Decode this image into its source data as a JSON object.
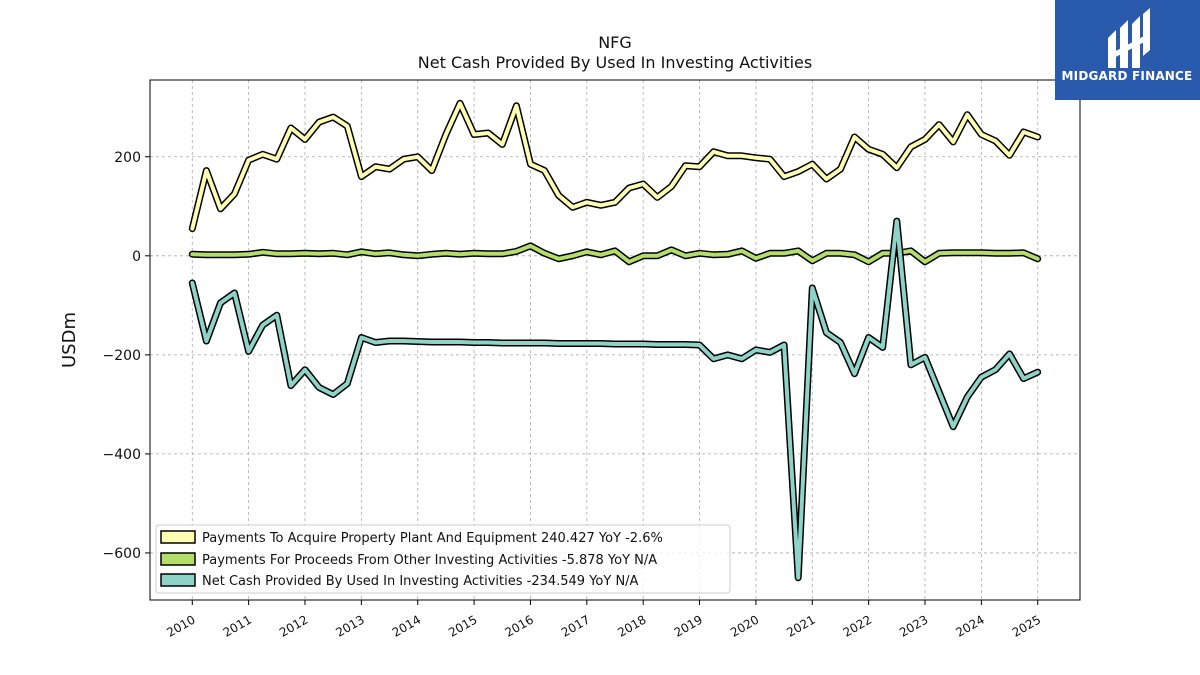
{
  "colors": {
    "capex": "#ffffb3",
    "other": "#b3de69",
    "net": "#8dd3c7",
    "outline": "#000000",
    "grid": "#aaaaaa",
    "logo_bg": "#2a5aab"
  },
  "logo": {
    "name": "MIDGARD FINANCE",
    "icon": "midgard-logo-icon"
  },
  "chart_data": {
    "type": "line",
    "title": "NFG",
    "subtitle": "Net Cash Provided By Used In Investing Activities",
    "ylabel": "USDm",
    "xlabel": "",
    "xlim": [
      2009.25,
      2025.75
    ],
    "ylim": [
      -695,
      355
    ],
    "yticks": [
      -600,
      -400,
      -200,
      0,
      200
    ],
    "ytick_labels": [
      "−600",
      "−400",
      "−200",
      "0",
      "200"
    ],
    "xticks": [
      2010,
      2011,
      2012,
      2013,
      2014,
      2015,
      2016,
      2017,
      2018,
      2019,
      2020,
      2021,
      2022,
      2023,
      2024,
      2025
    ],
    "xtick_labels": [
      "2010",
      "2011",
      "2012",
      "2013",
      "2014",
      "2015",
      "2016",
      "2017",
      "2018",
      "2019",
      "2020",
      "2021",
      "2022",
      "2023",
      "2024",
      "2025"
    ],
    "grid": true,
    "legend_position": "lower-left",
    "legend_labels": [
      "Payments To Acquire Property Plant And Equipment  240.427 YoY -2.6%",
      "Payments For Proceeds From Other Investing Activities  -5.878 YoY N/A",
      "Net Cash Provided By Used In Investing Activities  -234.549 YoY N/A"
    ],
    "x": [
      2010.0,
      2010.25,
      2010.5,
      2010.75,
      2011.0,
      2011.25,
      2011.5,
      2011.75,
      2012.0,
      2012.25,
      2012.5,
      2012.75,
      2013.0,
      2013.25,
      2013.5,
      2013.75,
      2014.0,
      2014.25,
      2014.5,
      2014.75,
      2015.0,
      2015.25,
      2015.5,
      2015.75,
      2016.0,
      2016.25,
      2016.5,
      2016.75,
      2017.0,
      2017.25,
      2017.5,
      2017.75,
      2018.0,
      2018.25,
      2018.5,
      2018.75,
      2019.0,
      2019.25,
      2019.5,
      2019.75,
      2020.0,
      2020.25,
      2020.5,
      2020.75,
      2021.0,
      2021.25,
      2021.5,
      2021.75,
      2022.0,
      2022.25,
      2022.5,
      2022.75,
      2023.0,
      2023.25,
      2023.5,
      2023.75,
      2024.0,
      2024.25,
      2024.5,
      2024.75,
      2025.0
    ],
    "series": [
      {
        "values": [
          55,
          172,
          95,
          125,
          193,
          205,
          195,
          258,
          235,
          270,
          280,
          262,
          160,
          180,
          175,
          195,
          200,
          172,
          245,
          308,
          245,
          248,
          225,
          303,
          185,
          172,
          122,
          98,
          108,
          102,
          108,
          137,
          145,
          118,
          140,
          182,
          180,
          210,
          202,
          202,
          198,
          195,
          160,
          170,
          185,
          155,
          175,
          240,
          215,
          205,
          178,
          220,
          235,
          265,
          230,
          285,
          245,
          232,
          203,
          250,
          240
        ]
      },
      {
        "values": [
          3,
          2,
          2,
          2,
          3,
          7,
          4,
          4,
          5,
          4,
          5,
          2,
          8,
          4,
          6,
          2,
          0,
          3,
          5,
          3,
          5,
          4,
          4,
          9,
          20,
          5,
          -6,
          0,
          8,
          2,
          10,
          -12,
          0,
          0,
          12,
          0,
          5,
          2,
          3,
          10,
          -5,
          5,
          5,
          10,
          -10,
          5,
          5,
          2,
          -12,
          5,
          5,
          10,
          -12,
          5,
          6,
          6,
          6,
          5,
          5,
          6,
          -6
        ]
      },
      {
        "values": [
          -55,
          -172,
          -95,
          -75,
          -193,
          -140,
          -120,
          -262,
          -230,
          -266,
          -280,
          -258,
          -165,
          -175,
          -172,
          -172,
          -173,
          -174,
          -174,
          -174,
          -175,
          -175,
          -176,
          -176,
          -176,
          -176,
          -177,
          -177,
          -177,
          -177,
          -178,
          -178,
          -178,
          -179,
          -179,
          -179,
          -180,
          -208,
          -200,
          -208,
          -190,
          -195,
          -180,
          -650,
          -65,
          -155,
          -175,
          -238,
          -165,
          -185,
          70,
          -220,
          -205,
          -275,
          -345,
          -285,
          -245,
          -230,
          -198,
          -248,
          -235
        ]
      }
    ]
  }
}
